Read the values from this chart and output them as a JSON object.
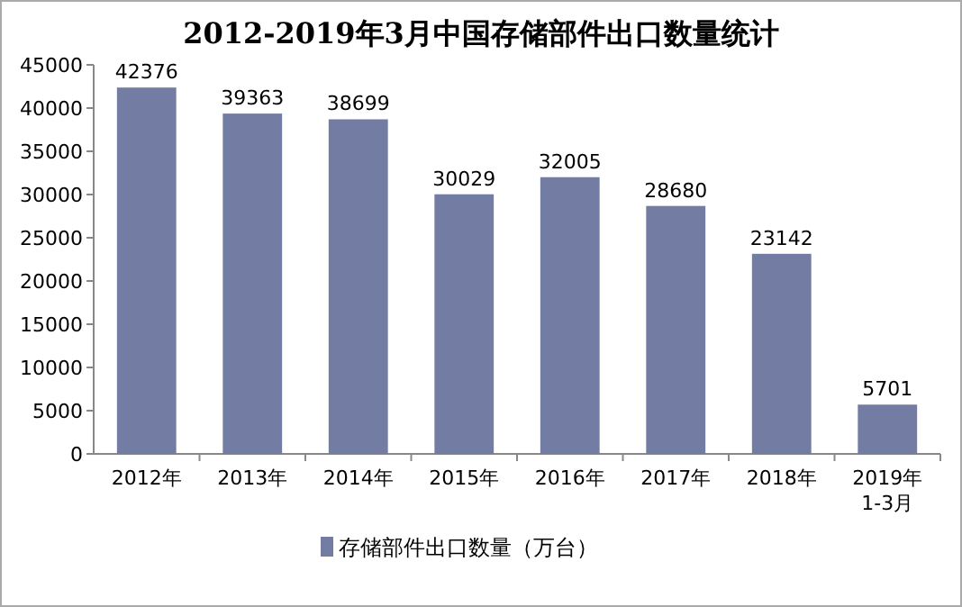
{
  "chart_data": {
    "type": "bar",
    "title": "2012-2019年3月中国存储部件出口数量统计",
    "categories": [
      "2012年",
      "2013年",
      "2014年",
      "2015年",
      "2016年",
      "2017年",
      "2018年",
      "2019年\n1-3月"
    ],
    "series": [
      {
        "name": "存储部件出口数量（万台）",
        "color": "#737ca3",
        "values": [
          42376,
          39363,
          38699,
          30029,
          32005,
          28680,
          23142,
          5701
        ]
      }
    ],
    "ylim": [
      0,
      45000
    ],
    "yticks": [
      0,
      5000,
      10000,
      15000,
      20000,
      25000,
      30000,
      35000,
      40000,
      45000
    ],
    "data_labels": true,
    "legend": "bottom"
  }
}
